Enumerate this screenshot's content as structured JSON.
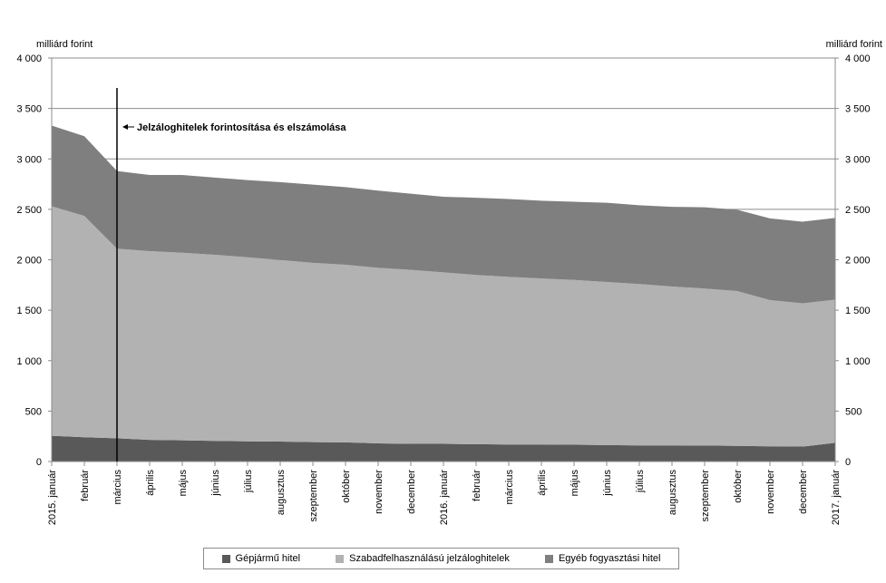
{
  "chart_data": {
    "type": "area",
    "stacked": true,
    "y_unit_left": "milliárd forint",
    "y_unit_right": "milliárd forint",
    "ylim": [
      0,
      4000
    ],
    "yticks": [
      0,
      500,
      1000,
      1500,
      2000,
      2500,
      3000,
      3500,
      4000
    ],
    "ytick_labels": [
      "0",
      "500",
      "1 000",
      "1 500",
      "2 000",
      "2 500",
      "3 000",
      "3 500",
      "4 000"
    ],
    "grid": "horizontal",
    "legend_position": "bottom",
    "categories": [
      "2015. január",
      "február",
      "március",
      "április",
      "május",
      "június",
      "július",
      "augusztus",
      "szeptember",
      "október",
      "november",
      "december",
      "2016. január",
      "február",
      "március",
      "április",
      "május",
      "június",
      "július",
      "augusztus",
      "szeptember",
      "október",
      "november",
      "december",
      "2017. január"
    ],
    "series": [
      {
        "name": "Gépjármű hitel",
        "color": "#595959",
        "values": [
          255,
          240,
          230,
          215,
          210,
          205,
          200,
          198,
          192,
          190,
          180,
          175,
          175,
          172,
          168,
          168,
          166,
          163,
          160,
          160,
          158,
          155,
          150,
          148,
          185
        ]
      },
      {
        "name": "Szabadfelhasználású jelzáloghitelek",
        "color": "#b2b2b2",
        "values": [
          2275,
          2195,
          1880,
          1870,
          1860,
          1845,
          1825,
          1800,
          1778,
          1760,
          1740,
          1725,
          1700,
          1678,
          1662,
          1647,
          1634,
          1617,
          1600,
          1575,
          1557,
          1535,
          1450,
          1420,
          1420
        ]
      },
      {
        "name": "Egyéb fogyasztási hitel",
        "color": "#7f7f7f",
        "values": [
          800,
          790,
          770,
          755,
          770,
          765,
          765,
          772,
          775,
          770,
          765,
          755,
          750,
          765,
          772,
          770,
          775,
          785,
          780,
          790,
          805,
          805,
          810,
          810,
          810
        ]
      }
    ],
    "annotation": {
      "text": "Jelzáloghitelek forintosítása és elszámolása",
      "category_index": 2
    }
  }
}
